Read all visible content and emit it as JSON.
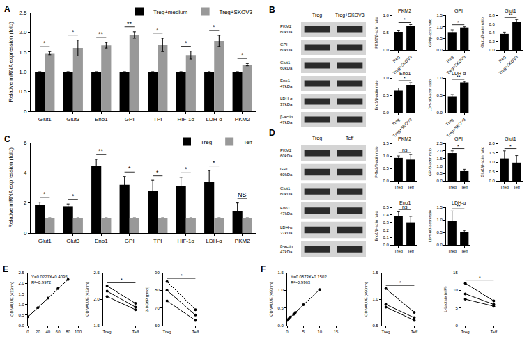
{
  "chart_data": [
    {
      "panel": "A",
      "type": "bar",
      "categories": [
        "Glut1",
        "Glut3",
        "Eno1",
        "GPI",
        "TPI",
        "HIF-1α",
        "LDH-α",
        "PKM2"
      ],
      "series": [
        {
          "name": "Treg+medium",
          "color": "#000000",
          "values": [
            1,
            1,
            1,
            1,
            1,
            1,
            1,
            1
          ],
          "errors": [
            0,
            0,
            0,
            0,
            0,
            0,
            0,
            0
          ]
        },
        {
          "name": "Treg+SKOV3",
          "color": "#999999",
          "values": [
            1.47,
            1.6,
            1.67,
            1.93,
            1.68,
            1.42,
            1.78,
            1.18
          ],
          "errors": [
            0.04,
            0.2,
            0.07,
            0.08,
            0.17,
            0.1,
            0.14,
            0.03
          ]
        }
      ],
      "ylabel": "Relative mRNA expression (fold)",
      "ylim": [
        0,
        2.5
      ],
      "yticks": [
        0,
        0.5,
        {
          "value": 1,
          "label": "1.0"
        },
        1.5,
        {
          "value": 2,
          "label": "2.0"
        },
        2.5
      ],
      "significance": [
        "*",
        "*",
        "**",
        "**",
        "*",
        "*",
        "*",
        "*"
      ],
      "legend": "upper right",
      "grid": false
    },
    {
      "type": "bar",
      "title": "PKM2",
      "categories": [
        "Treg",
        "Treg+SKOV3"
      ],
      "values": [
        0.52,
        0.68
      ],
      "errors": [
        0.05,
        0.05
      ],
      "color": "#000000",
      "ylabel": "PKM2/β-actin ratio",
      "ylim": [
        0,
        1
      ],
      "yticks": [
        {
          "value": 0,
          "label": "0.0"
        },
        0.5,
        {
          "value": 1,
          "label": "1.0"
        }
      ],
      "significance": "*",
      "grid": false
    },
    {
      "type": "bar",
      "title": "GPI",
      "categories": [
        "Treg",
        "Treg+SKOV3"
      ],
      "values": [
        0.77,
        0.97
      ],
      "errors": [
        0.1,
        0.03
      ],
      "color": "#000000",
      "ylabel": "GPI/β-actin ratio",
      "ylim": [
        0,
        1.5
      ],
      "yticks": [
        {
          "value": 0,
          "label": "0.0"
        },
        0.5,
        {
          "value": 1,
          "label": "1.0"
        },
        1.5
      ],
      "significance": "*",
      "grid": false
    },
    {
      "type": "bar",
      "title": "Glut1",
      "categories": [
        "Treg",
        "Treg+SKOV3"
      ],
      "values": [
        0.37,
        0.65
      ],
      "errors": [
        0.04,
        0.05
      ],
      "color": "#000000",
      "ylabel": "Glut1/β-actin ratio",
      "ylim": [
        0,
        0.8
      ],
      "yticks": [
        {
          "value": 0,
          "label": "0.0"
        },
        0.2,
        0.4,
        0.6,
        0.8
      ],
      "significance": "**",
      "grid": false
    },
    {
      "type": "bar",
      "title": "Eno1",
      "categories": [
        "Treg",
        "Treg+SKOV3"
      ],
      "values": [
        0.63,
        0.8
      ],
      "errors": [
        0.08,
        0.06
      ],
      "color": "#000000",
      "ylabel": "Eno1/β-actin ratio",
      "ylim": [
        0,
        1
      ],
      "yticks": [
        {
          "value": 0,
          "label": "0.0"
        },
        0.5,
        {
          "value": 1,
          "label": "1.0"
        }
      ],
      "significance": "*",
      "grid": false
    },
    {
      "type": "bar",
      "title": "LDH-α",
      "categories": [
        "Treg",
        "Treg+SKOV3"
      ],
      "values": [
        0.47,
        0.87
      ],
      "errors": [
        0.05,
        0.03
      ],
      "color": "#000000",
      "ylabel": "LDH-α/β-actin ratio",
      "ylim": [
        0,
        1
      ],
      "yticks": [
        {
          "value": 0,
          "label": "0.0"
        },
        0.5,
        {
          "value": 1,
          "label": "1.0"
        }
      ],
      "significance": "**",
      "grid": false
    },
    {
      "panel": "C",
      "type": "bar",
      "categories": [
        "Glut1",
        "Glut3",
        "Eno1",
        "GPI",
        "TPI",
        "HIF-1α",
        "LDH-α",
        "PKM2"
      ],
      "series": [
        {
          "name": "Treg",
          "color": "#000000",
          "values": [
            1.85,
            1.78,
            4.45,
            3.2,
            2.8,
            3.1,
            3.4,
            1.45
          ],
          "errors": [
            0.2,
            0.15,
            0.45,
            0.55,
            0.7,
            0.6,
            0.75,
            0.55
          ]
        },
        {
          "name": "Teff",
          "color": "#999999",
          "values": [
            1,
            1,
            1,
            1,
            1,
            1,
            1,
            1
          ],
          "errors": [
            0,
            0,
            0,
            0,
            0,
            0,
            0,
            0
          ]
        }
      ],
      "ylabel": "Relative mRNA expression (fold)",
      "ylim": [
        0,
        6
      ],
      "yticks": [
        0,
        2,
        4,
        6
      ],
      "significance": [
        "*",
        "*",
        "**",
        "*",
        "*",
        "*",
        "*",
        "NS"
      ],
      "legend": "upper right",
      "grid": false
    },
    {
      "type": "bar",
      "title": "PKM2",
      "categories": [
        "Treg",
        "Teff"
      ],
      "values": [
        0.92,
        0.85
      ],
      "errors": [
        0.08,
        0.2
      ],
      "color": "#000000",
      "ylabel": "PKM2/β-actin ratio",
      "ylim": [
        0,
        1.5
      ],
      "yticks": [
        {
          "value": 0,
          "label": "0.0"
        },
        0.5,
        {
          "value": 1,
          "label": "1.0"
        },
        1.5
      ],
      "significance": "ns",
      "grid": false
    },
    {
      "type": "bar",
      "title": "GPI",
      "categories": [
        "Treg",
        "Teff"
      ],
      "values": [
        1.85,
        0.65
      ],
      "errors": [
        0.15,
        0.12
      ],
      "color": "#000000",
      "ylabel": "GPI/β-actin ratio",
      "ylim": [
        0,
        2.5
      ],
      "yticks": [
        {
          "value": 0,
          "label": "0.0"
        },
        0.5,
        {
          "value": 1,
          "label": "1.0"
        },
        1.5,
        {
          "value": 2,
          "label": "2.0"
        },
        2.5
      ],
      "significance": "*",
      "grid": false
    },
    {
      "type": "bar",
      "title": "Glut1",
      "categories": [
        "Treg",
        "Teff"
      ],
      "values": [
        1.2,
        0.97
      ],
      "errors": [
        0.4,
        0.38
      ],
      "color": "#000000",
      "ylabel": "Glut1/β-actin ratio",
      "ylim": [
        0,
        2
      ],
      "yticks": [
        {
          "value": 0,
          "label": "0.0"
        },
        0.5,
        {
          "value": 1,
          "label": "1.0"
        },
        1.5,
        {
          "value": 2,
          "label": "2.0"
        }
      ],
      "significance": "*",
      "grid": false
    },
    {
      "type": "bar",
      "title": "Eno1",
      "categories": [
        "Treg",
        "Teff"
      ],
      "values": [
        0.38,
        0.3
      ],
      "errors": [
        0.06,
        0.08
      ],
      "color": "#000000",
      "ylabel": "Eno1/β-actin ratio",
      "ylim": [
        0,
        0.5
      ],
      "yticks": [
        {
          "value": 0,
          "label": "0.0"
        },
        0.1,
        0.2,
        0.3,
        0.4,
        0.5
      ],
      "significance": "ns",
      "grid": false
    },
    {
      "type": "bar",
      "title": "LDH-α",
      "categories": [
        "Treg",
        "Teff"
      ],
      "values": [
        0.97,
        0.5
      ],
      "errors": [
        0.38,
        0.08
      ],
      "color": "#000000",
      "ylabel": "LDH-α/β-actin ratio",
      "ylim": [
        0,
        1.5
      ],
      "yticks": [
        {
          "value": 0,
          "label": "0.0"
        },
        0.5,
        {
          "value": 1,
          "label": "1.0"
        },
        1.5
      ],
      "significance": "**",
      "grid": false
    },
    {
      "panel": "E",
      "type": "scatter",
      "x": [
        0,
        20,
        40,
        60,
        80
      ],
      "values": [
        0.42,
        0.85,
        1.3,
        1.75,
        2.18
      ],
      "color": "#000000",
      "marker": "circle",
      "fit": {
        "slope": 0.0221,
        "intercept": 0.4095
      },
      "annotations": [
        "Y=0.0221X+0.4095",
        "R²=0.9972"
      ],
      "ylabel": "OD VALUE (412nm)",
      "xlim": [
        0,
        100
      ],
      "xticks": [
        0,
        20,
        40,
        60,
        80,
        100
      ],
      "ylim": [
        0,
        2.5
      ],
      "yticks": [
        {
          "value": 0,
          "label": "0.0"
        },
        0.5,
        {
          "value": 1,
          "label": "1.0"
        },
        1.5,
        {
          "value": 2,
          "label": "2.0"
        },
        2.5
      ],
      "grid": false
    },
    {
      "type": "line",
      "categories": [
        "Treg",
        "Teff"
      ],
      "series": [
        {
          "values": [
            2.25,
            1.92
          ]
        },
        {
          "values": [
            2.15,
            1.85
          ]
        },
        {
          "values": [
            2.05,
            1.8
          ]
        }
      ],
      "color": "#000000",
      "marker": "circle",
      "ylabel": "OD VALUE (412nm)",
      "ylim": [
        1.5,
        2.5
      ],
      "yticks": [
        1.5,
        {
          "value": 2,
          "label": "2.0"
        },
        2.5
      ],
      "significance": "*",
      "grid": false
    },
    {
      "type": "line",
      "categories": [
        "Treg",
        "Teff"
      ],
      "series": [
        {
          "values": [
            85,
            69
          ]
        },
        {
          "values": [
            80,
            66
          ]
        },
        {
          "values": [
            74,
            63
          ]
        }
      ],
      "color": "#000000",
      "marker": "circle",
      "ylabel": "2-DG6P (pmol)",
      "ylim": [
        60,
        90
      ],
      "yticks": [
        60,
        70,
        80,
        90
      ],
      "significance": "*",
      "grid": false
    },
    {
      "panel": "F",
      "type": "scatter",
      "x": [
        0,
        0.5,
        1,
        2,
        2.5,
        5,
        10
      ],
      "values": [
        0.15,
        0.19,
        0.24,
        0.32,
        0.37,
        0.59,
        1.02
      ],
      "color": "#000000",
      "marker": "circle",
      "fit": {
        "slope": 0.0873,
        "intercept": 0.1502
      },
      "annotations": [
        "Y=0.0873X+0.1502",
        "R²=0.9963"
      ],
      "ylabel": "OD VALUE (490nm)",
      "xlim": [
        0,
        15
      ],
      "xticks": [
        0,
        5,
        10,
        15
      ],
      "ylim": [
        0,
        1.5
      ],
      "yticks": [
        {
          "value": 0,
          "label": "0.0"
        },
        0.5,
        {
          "value": 1,
          "label": "1.0"
        },
        1.5
      ],
      "grid": false
    },
    {
      "type": "line",
      "categories": [
        "Treg",
        "Teff"
      ],
      "series": [
        {
          "values": [
            1.2,
            0.75
          ]
        },
        {
          "values": [
            0.9,
            0.65
          ]
        },
        {
          "values": [
            0.85,
            0.6
          ]
        }
      ],
      "color": "#000000",
      "marker": "circle",
      "ylabel": "OD VALUE (490nm)",
      "ylim": [
        0.5,
        1.5
      ],
      "yticks": [
        0.5,
        {
          "value": 1,
          "label": "1.0"
        },
        1.5
      ],
      "significance": "*",
      "grid": false
    },
    {
      "type": "line",
      "categories": [
        "Treg",
        "Teff"
      ],
      "series": [
        {
          "values": [
            12,
            7
          ]
        },
        {
          "values": [
            9,
            6
          ]
        },
        {
          "values": [
            7.5,
            5.5
          ]
        }
      ],
      "color": "#000000",
      "marker": "circle",
      "ylabel": "L-Lactate (mM)",
      "ylim": [
        0,
        15
      ],
      "yticks": [
        0,
        5,
        10,
        15
      ],
      "significance": "*",
      "grid": false
    }
  ],
  "blots": [
    {
      "panel": "B",
      "columns": [
        "Treg",
        "Treg+SKOV3"
      ],
      "rows": [
        {
          "protein": "PKM2",
          "size": "60kDa"
        },
        {
          "protein": "GPI",
          "size": "60kDa"
        },
        {
          "protein": "Glut1",
          "size": "60kDa"
        },
        {
          "protein": "Eno1",
          "size": "47kDa"
        },
        {
          "protein": "LDH-α",
          "size": "37kDa"
        },
        {
          "protein": "β-actin",
          "size": "47kDa"
        }
      ]
    },
    {
      "panel": "D",
      "columns": [
        "Treg",
        "Teff"
      ],
      "rows": [
        {
          "protein": "PKM2",
          "size": "60kDa"
        },
        {
          "protein": "GPI",
          "size": "60kDa"
        },
        {
          "protein": "Glut1",
          "size": "60kDa"
        },
        {
          "protein": "Eno1",
          "size": "47kDa"
        },
        {
          "protein": "LDH-α",
          "size": "37kDa"
        },
        {
          "protein": "β-actin",
          "size": "47kDa"
        }
      ]
    }
  ]
}
